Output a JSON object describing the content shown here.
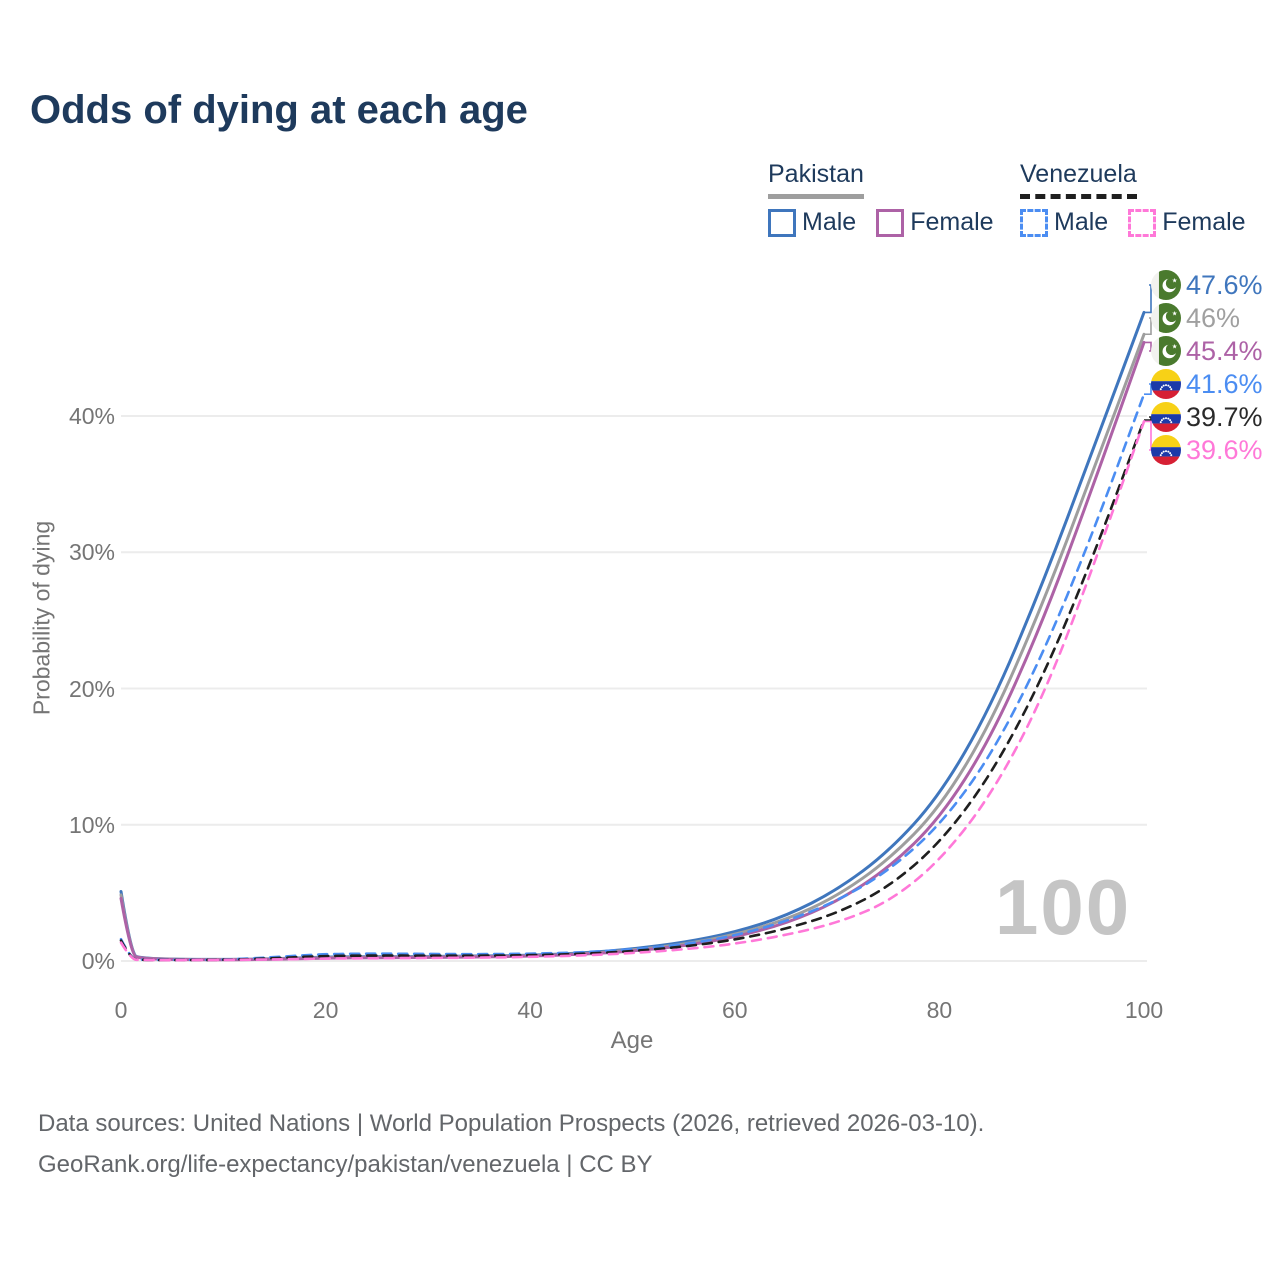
{
  "title": "Odds of dying at each age",
  "legend": {
    "groups": [
      {
        "name": "Pakistan",
        "underline_style": "solid",
        "underline_color": "#9e9e9e",
        "items": [
          {
            "label": "Male",
            "color": "#3f76bd",
            "dashed": false
          },
          {
            "label": "Female",
            "color": "#ad62a6",
            "dashed": false
          }
        ]
      },
      {
        "name": "Venezuela",
        "underline_style": "dashed",
        "underline_color": "#1f1f1f",
        "items": [
          {
            "label": "Male",
            "color": "#4b8df2",
            "dashed": true
          },
          {
            "label": "Female",
            "color": "#ff78d8",
            "dashed": true
          }
        ]
      }
    ]
  },
  "chart_data": {
    "type": "line",
    "title": "Odds of dying at each age",
    "xlabel": "Age",
    "ylabel": "Probability of dying",
    "unit": "percent",
    "xlim": [
      0,
      100
    ],
    "ylim": [
      0,
      48
    ],
    "grid": "horizontal",
    "legend_position": "top-right",
    "watermark": "100",
    "x_ticks": [
      {
        "value": 0,
        "label": "0"
      },
      {
        "value": 20,
        "label": "20"
      },
      {
        "value": 40,
        "label": "40"
      },
      {
        "value": 60,
        "label": "60"
      },
      {
        "value": 80,
        "label": "80"
      },
      {
        "value": 100,
        "label": "100"
      }
    ],
    "y_ticks": [
      {
        "value": 0,
        "label": "0%"
      },
      {
        "value": 10,
        "label": "10%"
      },
      {
        "value": 20,
        "label": "20%"
      },
      {
        "value": 30,
        "label": "30%"
      },
      {
        "value": 40,
        "label": "40%"
      }
    ],
    "x": [
      0,
      1,
      2,
      5,
      10,
      15,
      20,
      25,
      30,
      35,
      40,
      45,
      50,
      55,
      60,
      65,
      70,
      75,
      80,
      85,
      90,
      95,
      100
    ],
    "series": [
      {
        "name": "Pakistan Male",
        "color": "#3f76bd",
        "dashed": false,
        "flag": "pakistan",
        "end_label": "47.6%",
        "label_color": "#3f76bd",
        "values": [
          5.1,
          0.45,
          0.22,
          0.13,
          0.11,
          0.16,
          0.3,
          0.32,
          0.33,
          0.36,
          0.42,
          0.58,
          0.88,
          1.35,
          2.1,
          3.3,
          5.2,
          8.0,
          12.1,
          18.6,
          27.5,
          37.5,
          47.6
        ]
      },
      {
        "name": "Pakistan",
        "color": "#9e9e9e",
        "dashed": false,
        "flag": "pakistan",
        "end_label": "46%",
        "label_color": "#a0a0a0",
        "values": [
          4.85,
          0.42,
          0.2,
          0.12,
          0.1,
          0.14,
          0.26,
          0.28,
          0.3,
          0.32,
          0.38,
          0.52,
          0.8,
          1.22,
          1.92,
          3.02,
          4.75,
          7.4,
          11.2,
          17.4,
          26.0,
          35.9,
          46.0
        ]
      },
      {
        "name": "Pakistan Female",
        "color": "#ad62a6",
        "dashed": false,
        "flag": "pakistan",
        "end_label": "45.4%",
        "label_color": "#ad62a6",
        "values": [
          4.6,
          0.4,
          0.19,
          0.11,
          0.09,
          0.12,
          0.22,
          0.24,
          0.26,
          0.29,
          0.35,
          0.48,
          0.73,
          1.1,
          1.75,
          2.75,
          4.35,
          6.8,
          10.4,
          16.3,
          24.7,
          34.8,
          45.4
        ]
      },
      {
        "name": "Venezuela Male",
        "color": "#4b8df2",
        "dashed": true,
        "flag": "venezuela",
        "end_label": "41.6%",
        "label_color": "#4b8df2",
        "values": [
          1.6,
          0.13,
          0.09,
          0.08,
          0.09,
          0.28,
          0.52,
          0.54,
          0.52,
          0.5,
          0.53,
          0.63,
          0.85,
          1.2,
          1.85,
          2.9,
          4.4,
          6.6,
          9.9,
          15.0,
          22.3,
          31.4,
          41.6
        ]
      },
      {
        "name": "Venezuela",
        "color": "#1f1f1f",
        "dashed": true,
        "flag": "venezuela",
        "end_label": "39.7%",
        "label_color": "#2a2a2a",
        "values": [
          1.5,
          0.12,
          0.08,
          0.07,
          0.08,
          0.2,
          0.38,
          0.4,
          0.39,
          0.39,
          0.42,
          0.52,
          0.72,
          1.05,
          1.55,
          2.35,
          3.5,
          5.4,
          8.6,
          13.6,
          20.6,
          29.6,
          39.7
        ]
      },
      {
        "name": "Venezuela Female",
        "color": "#ff78d8",
        "dashed": true,
        "flag": "venezuela",
        "end_label": "39.6%",
        "label_color": "#ff78d8",
        "values": [
          1.35,
          0.11,
          0.07,
          0.06,
          0.07,
          0.12,
          0.18,
          0.2,
          0.22,
          0.25,
          0.3,
          0.4,
          0.58,
          0.85,
          1.25,
          1.9,
          2.8,
          4.3,
          7.3,
          12.1,
          19.1,
          28.8,
          39.6
        ]
      }
    ]
  },
  "footer": {
    "line1": "Data sources: United Nations | World Population Prospects (2026, retrieved 2026-03-10).",
    "line2": "GeoRank.org/life-expectancy/pakistan/venezuela | CC BY"
  }
}
